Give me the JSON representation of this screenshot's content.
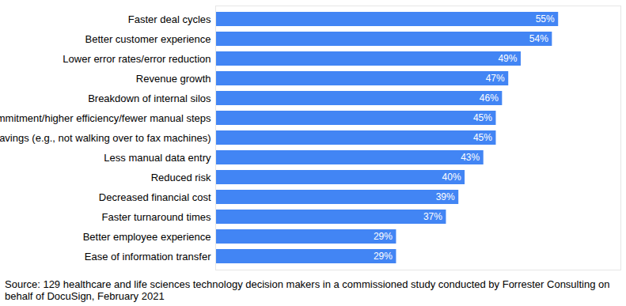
{
  "chart_data": {
    "type": "bar",
    "orientation": "horizontal",
    "categories": [
      "Faster deal cycles",
      "Better customer experience",
      "Lower error rates/error reduction",
      "Revenue growth",
      "Breakdown of internal silos",
      "Decreased time commitment/higher efficiency/fewer manual steps",
      "Time savings (e.g., not walking over to fax machines)",
      "Less manual data entry",
      "Reduced risk",
      "Decreased financial cost",
      "Faster turnaround times",
      "Better employee experience",
      "Ease of information transfer"
    ],
    "values": [
      55,
      54,
      49,
      47,
      46,
      45,
      45,
      43,
      40,
      39,
      37,
      29,
      29
    ],
    "value_labels": [
      "55%",
      "54%",
      "49%",
      "47%",
      "46%",
      "45%",
      "45%",
      "43%",
      "40%",
      "39%",
      "37%",
      "29%",
      "29%"
    ],
    "color": "#4285f4",
    "xlim": [
      0,
      65
    ],
    "xticks": [],
    "data_labels": true,
    "tick_labels": "y",
    "grid": false,
    "caption": "Source: 129 healthcare and life sciences technology decision makers in a commissioned study conducted by Forrester Consulting on behalf of DocuSign, February 2021"
  }
}
